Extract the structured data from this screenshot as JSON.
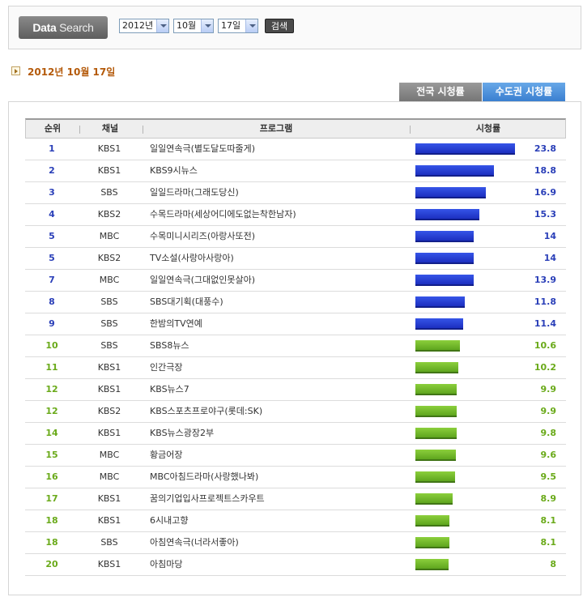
{
  "search": {
    "label_bold": "Data",
    "label_light": "Search",
    "year": "2012년",
    "month": "10월",
    "day": "17일",
    "button": "검색"
  },
  "date_title": "2012년 10월 17일",
  "tabs": [
    {
      "label": "전국 시청률",
      "active": false
    },
    {
      "label": "수도권 시청률",
      "active": true
    }
  ],
  "table": {
    "headers": {
      "rank": "순위",
      "channel": "채널",
      "program": "프로그램",
      "rating": "시청률"
    },
    "max_rating": 23.8,
    "rows": [
      {
        "rank": "1",
        "channel": "KBS1",
        "program": "일일연속극(별도달도따줄게)",
        "rating": "23.8",
        "value": 23.8,
        "color": "blue"
      },
      {
        "rank": "2",
        "channel": "KBS1",
        "program": "KBS9시뉴스",
        "rating": "18.8",
        "value": 18.8,
        "color": "blue"
      },
      {
        "rank": "3",
        "channel": "SBS",
        "program": "일일드라마(그래도당신)",
        "rating": "16.9",
        "value": 16.9,
        "color": "blue"
      },
      {
        "rank": "4",
        "channel": "KBS2",
        "program": "수목드라마(세상어디에도없는착한남자)",
        "rating": "15.3",
        "value": 15.3,
        "color": "blue"
      },
      {
        "rank": "5",
        "channel": "MBC",
        "program": "수목미니시리즈(아랑사또전)",
        "rating": "14",
        "value": 14,
        "color": "blue"
      },
      {
        "rank": "5",
        "channel": "KBS2",
        "program": "TV소설(사랑아사랑아)",
        "rating": "14",
        "value": 14,
        "color": "blue"
      },
      {
        "rank": "7",
        "channel": "MBC",
        "program": "일일연속극(그대없인못살아)",
        "rating": "13.9",
        "value": 13.9,
        "color": "blue"
      },
      {
        "rank": "8",
        "channel": "SBS",
        "program": "SBS대기획(대풍수)",
        "rating": "11.8",
        "value": 11.8,
        "color": "blue"
      },
      {
        "rank": "9",
        "channel": "SBS",
        "program": "한밤의TV연예",
        "rating": "11.4",
        "value": 11.4,
        "color": "blue"
      },
      {
        "rank": "10",
        "channel": "SBS",
        "program": "SBS8뉴스",
        "rating": "10.6",
        "value": 10.6,
        "color": "green"
      },
      {
        "rank": "11",
        "channel": "KBS1",
        "program": "인간극장",
        "rating": "10.2",
        "value": 10.2,
        "color": "green"
      },
      {
        "rank": "12",
        "channel": "KBS1",
        "program": "KBS뉴스7",
        "rating": "9.9",
        "value": 9.9,
        "color": "green"
      },
      {
        "rank": "12",
        "channel": "KBS2",
        "program": "KBS스포츠프로야구(롯데:SK)",
        "rating": "9.9",
        "value": 9.9,
        "color": "green"
      },
      {
        "rank": "14",
        "channel": "KBS1",
        "program": "KBS뉴스광장2부",
        "rating": "9.8",
        "value": 9.8,
        "color": "green"
      },
      {
        "rank": "15",
        "channel": "MBC",
        "program": "황금어장",
        "rating": "9.6",
        "value": 9.6,
        "color": "green"
      },
      {
        "rank": "16",
        "channel": "MBC",
        "program": "MBC아침드라마(사랑했나봐)",
        "rating": "9.5",
        "value": 9.5,
        "color": "green"
      },
      {
        "rank": "17",
        "channel": "KBS1",
        "program": "꿈의기업입사프로젝트스카우트",
        "rating": "8.9",
        "value": 8.9,
        "color": "green"
      },
      {
        "rank": "18",
        "channel": "KBS1",
        "program": "6시내고향",
        "rating": "8.1",
        "value": 8.1,
        "color": "green"
      },
      {
        "rank": "18",
        "channel": "SBS",
        "program": "아침연속극(너라서좋아)",
        "rating": "8.1",
        "value": 8.1,
        "color": "green"
      },
      {
        "rank": "20",
        "channel": "KBS1",
        "program": "아침마당",
        "rating": "8",
        "value": 8,
        "color": "green"
      }
    ]
  }
}
